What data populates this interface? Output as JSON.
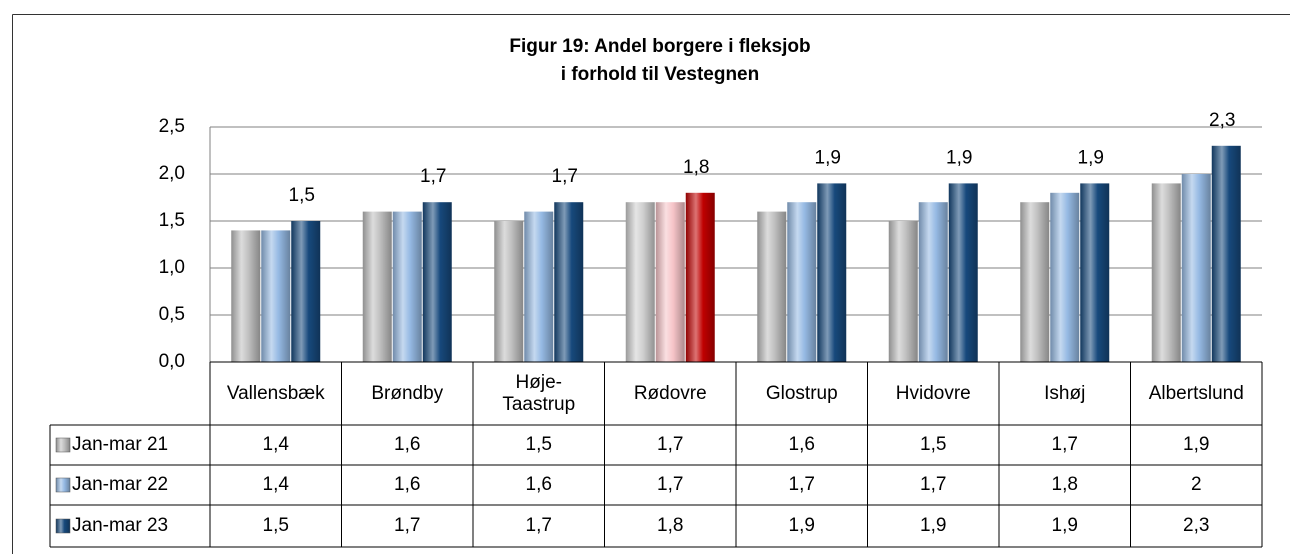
{
  "chart_data": {
    "type": "bar",
    "title": "Figur 19: Andel borgere i fleksjob",
    "subtitle": "i forhold til Vestegnen",
    "categories": [
      "Vallensbæk",
      "Brøndby",
      "Høje-\nTaastrup",
      "Rødovre",
      "Glostrup",
      "Hvidovre",
      "Ishøj",
      "Albertslund"
    ],
    "series": [
      {
        "name": "Jan-mar 21",
        "color": "#bfbfbf",
        "colors": [
          "#bfbfbf",
          "#bfbfbf",
          "#bfbfbf",
          "#cfcfcf",
          "#bfbfbf",
          "#bfbfbf",
          "#bfbfbf",
          "#bfbfbf"
        ],
        "values": [
          1.4,
          1.6,
          1.5,
          1.7,
          1.6,
          1.5,
          1.7,
          1.9
        ],
        "value_labels": [
          "1,4",
          "1,6",
          "1,5",
          "1,7",
          "1,6",
          "1,5",
          "1,7",
          "1,9"
        ]
      },
      {
        "name": "Jan-mar 22",
        "color": "#95b9e3",
        "colors": [
          "#95b9e3",
          "#95b9e3",
          "#95b9e3",
          "#f6c4c8",
          "#95b9e3",
          "#95b9e3",
          "#95b9e3",
          "#95b9e3"
        ],
        "values": [
          1.4,
          1.6,
          1.6,
          1.7,
          1.7,
          1.7,
          1.8,
          2.0
        ],
        "value_labels": [
          "1,4",
          "1,6",
          "1,6",
          "1,7",
          "1,7",
          "1,7",
          "1,8",
          "2"
        ]
      },
      {
        "name": "Jan-mar 23",
        "color": "#17497c",
        "colors": [
          "#17497c",
          "#17497c",
          "#17497c",
          "#c00000",
          "#17497c",
          "#17497c",
          "#17497c",
          "#17497c"
        ],
        "values": [
          1.5,
          1.7,
          1.7,
          1.8,
          1.9,
          1.9,
          1.9,
          2.3
        ],
        "value_labels": [
          "1,5",
          "1,7",
          "1,7",
          "1,8",
          "1,9",
          "1,9",
          "1,9",
          "2,3"
        ],
        "show_data_labels": true
      }
    ],
    "ylim": [
      0,
      2.5
    ],
    "yticks": [
      {
        "value": 0,
        "label": "0,0"
      },
      {
        "value": 0.5,
        "label": "0,5"
      },
      {
        "value": 1,
        "label": "1,0"
      },
      {
        "value": 1.5,
        "label": "1,5"
      },
      {
        "value": 2,
        "label": "2,0"
      },
      {
        "value": 2.5,
        "label": "2,5"
      }
    ],
    "grid": true,
    "data_table": true
  }
}
